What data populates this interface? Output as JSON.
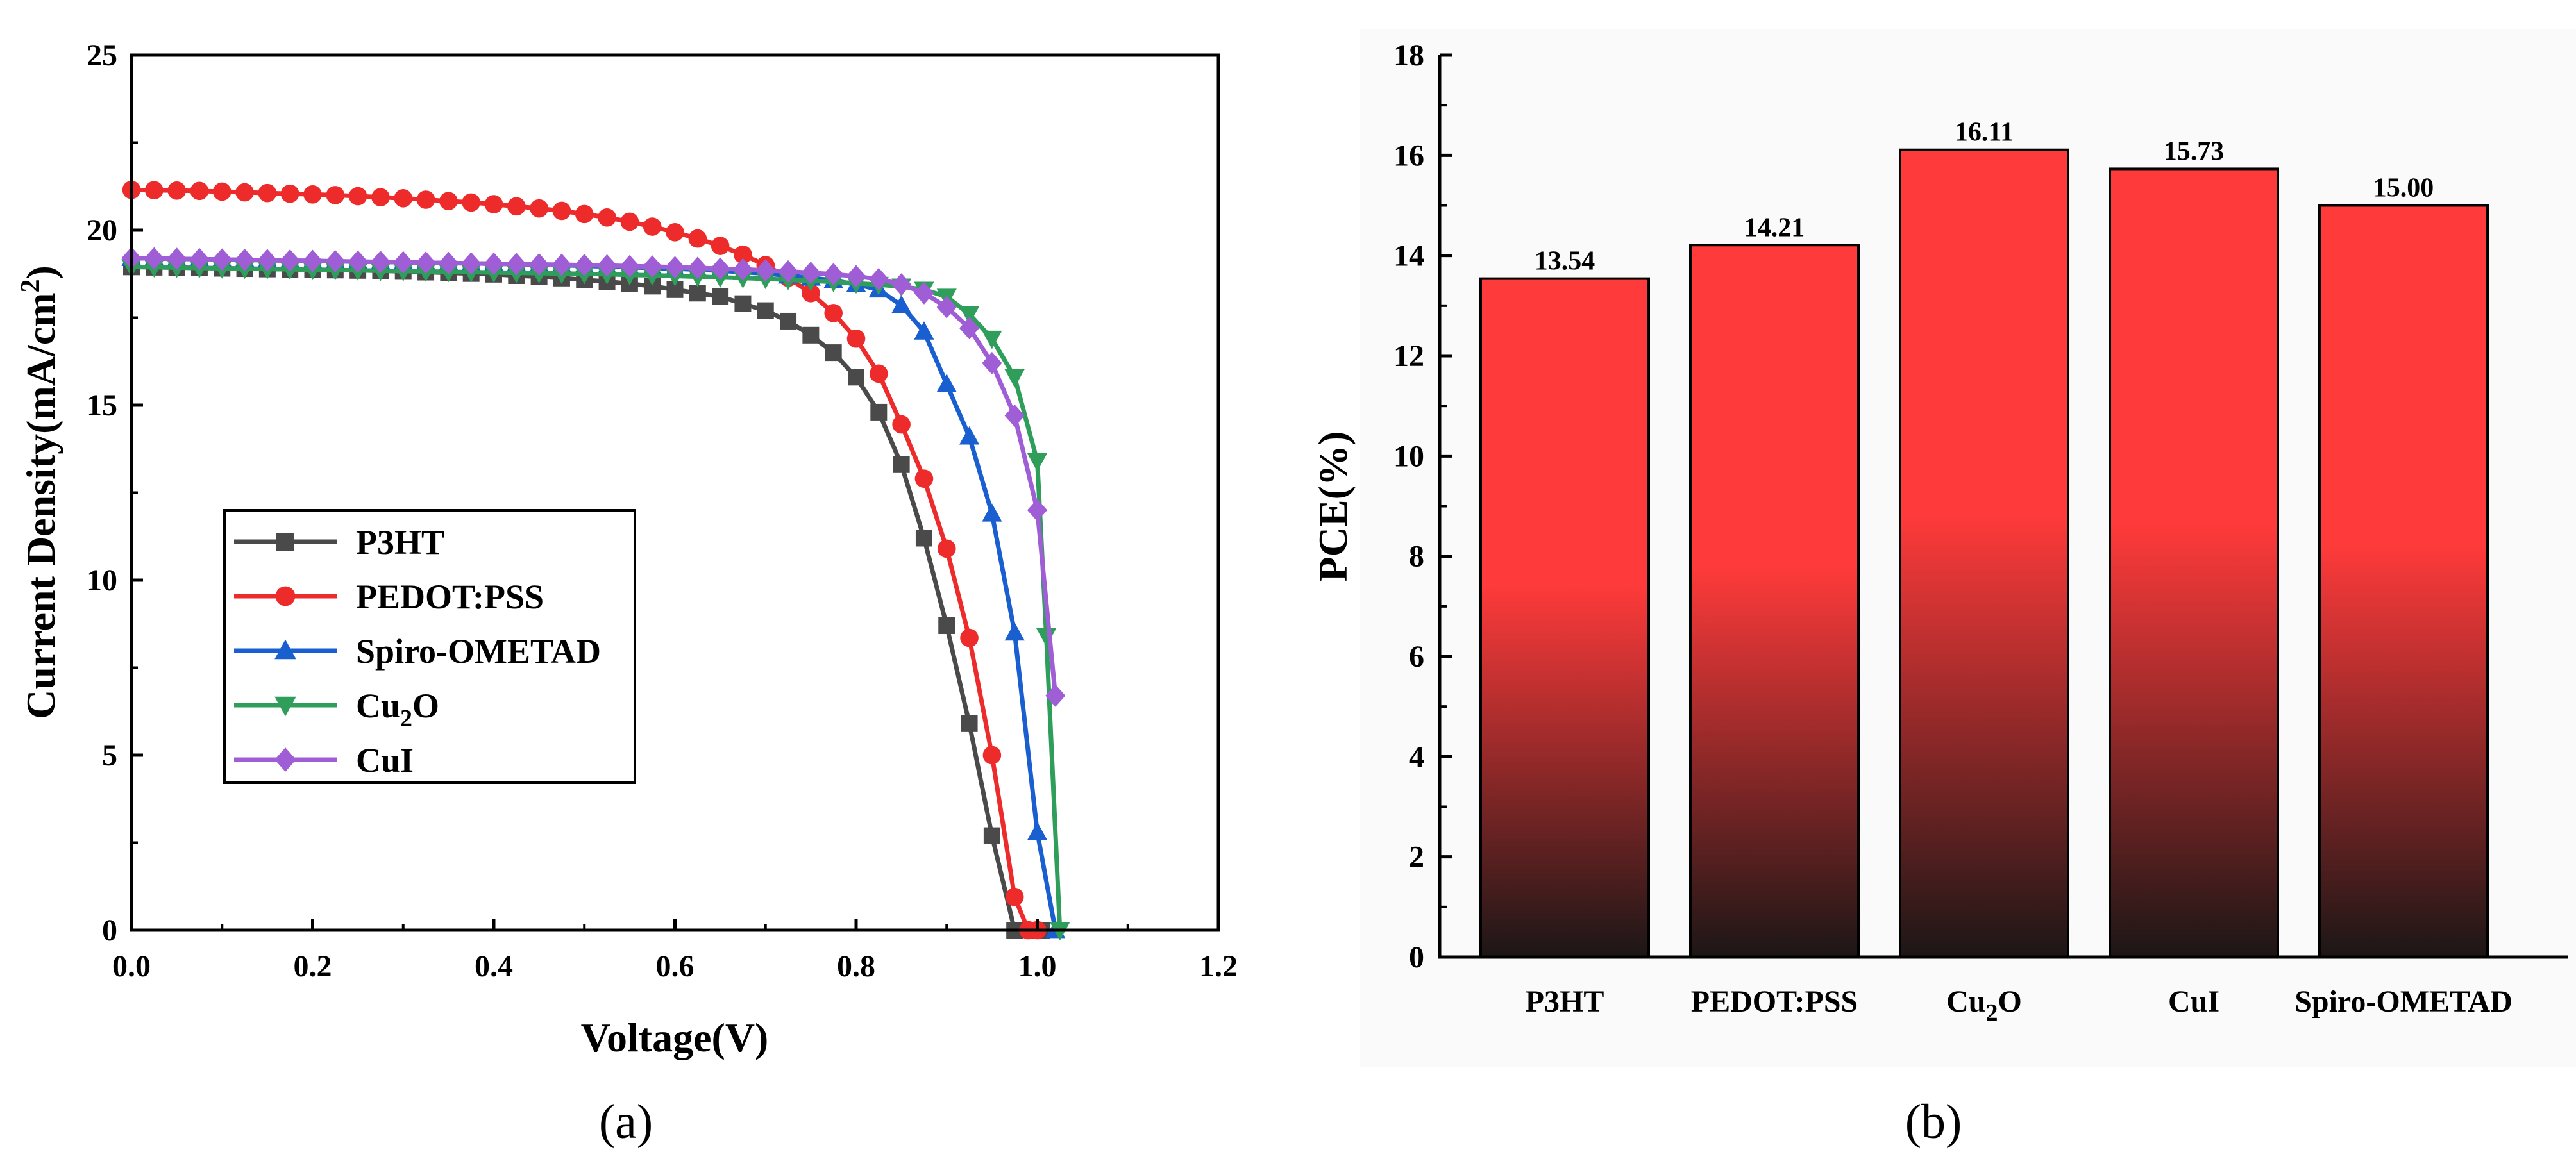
{
  "chart_data": [
    {
      "type": "line",
      "panel_label": "(a)",
      "xlabel": "Voltage(V)",
      "ylabel": "Current Density(mA/cm",
      "ylabel_sup": "2",
      "ylabel_suffix": ")",
      "xlim": [
        0.0,
        1.2
      ],
      "ylim": [
        0,
        25
      ],
      "xticks": [
        "0.0",
        "0.2",
        "0.4",
        "0.6",
        "0.8",
        "1.0",
        "1.2"
      ],
      "yticks": [
        "0",
        "5",
        "10",
        "15",
        "20",
        "25"
      ],
      "legend_position": "lower-left",
      "series": [
        {
          "name": "P3HT",
          "label_main": "P3HT",
          "label_sub": "",
          "label_suffix": "",
          "color": "#4a4a4a",
          "marker": "square",
          "x": [
            0,
            0.025,
            0.05,
            0.075,
            0.1,
            0.125,
            0.15,
            0.175,
            0.2,
            0.225,
            0.25,
            0.275,
            0.3,
            0.325,
            0.35,
            0.375,
            0.4,
            0.425,
            0.45,
            0.475,
            0.5,
            0.525,
            0.55,
            0.575,
            0.6,
            0.625,
            0.65,
            0.675,
            0.7,
            0.725,
            0.75,
            0.775,
            0.8,
            0.825,
            0.85,
            0.875,
            0.9,
            0.925,
            0.95,
            0.975,
            1.0,
            1.005
          ],
          "y": [
            18.95,
            18.94,
            18.93,
            18.92,
            18.91,
            18.9,
            18.89,
            18.88,
            18.87,
            18.86,
            18.85,
            18.84,
            18.82,
            18.8,
            18.78,
            18.76,
            18.74,
            18.7,
            18.67,
            18.63,
            18.58,
            18.53,
            18.47,
            18.4,
            18.3,
            18.2,
            18.1,
            17.9,
            17.7,
            17.4,
            17.0,
            16.5,
            15.8,
            14.8,
            13.3,
            11.2,
            8.7,
            5.9,
            2.7,
            0.0,
            0.0,
            0.0
          ]
        },
        {
          "name": "PEDOT:PSS",
          "label_main": "PEDOT:PSS",
          "label_sub": "",
          "label_suffix": "",
          "color": "#ee2b2b",
          "marker": "circle",
          "x": [
            0,
            0.025,
            0.05,
            0.075,
            0.1,
            0.125,
            0.15,
            0.175,
            0.2,
            0.225,
            0.25,
            0.275,
            0.3,
            0.325,
            0.35,
            0.375,
            0.4,
            0.425,
            0.45,
            0.475,
            0.5,
            0.525,
            0.55,
            0.575,
            0.6,
            0.625,
            0.65,
            0.675,
            0.7,
            0.725,
            0.75,
            0.775,
            0.8,
            0.825,
            0.85,
            0.875,
            0.9,
            0.925,
            0.95,
            0.975,
            0.99,
            1.0
          ],
          "y": [
            21.15,
            21.14,
            21.13,
            21.12,
            21.1,
            21.08,
            21.06,
            21.04,
            21.02,
            21.0,
            20.97,
            20.94,
            20.91,
            20.87,
            20.83,
            20.79,
            20.74,
            20.68,
            20.62,
            20.55,
            20.46,
            20.36,
            20.24,
            20.1,
            19.94,
            19.76,
            19.55,
            19.3,
            19.0,
            18.64,
            18.2,
            17.63,
            16.9,
            15.9,
            14.45,
            12.9,
            10.9,
            8.35,
            5.0,
            0.95,
            0.0,
            0.0
          ]
        },
        {
          "name": "Spiro-OMETAD",
          "label_main": "Spiro-OMETAD",
          "label_sub": "",
          "label_suffix": "",
          "color": "#1a5fd0",
          "marker": "triangle-up",
          "x": [
            0,
            0.025,
            0.05,
            0.075,
            0.1,
            0.125,
            0.15,
            0.175,
            0.2,
            0.225,
            0.25,
            0.275,
            0.3,
            0.325,
            0.35,
            0.375,
            0.4,
            0.425,
            0.45,
            0.475,
            0.5,
            0.525,
            0.55,
            0.575,
            0.6,
            0.625,
            0.65,
            0.675,
            0.7,
            0.725,
            0.75,
            0.775,
            0.8,
            0.825,
            0.85,
            0.875,
            0.9,
            0.925,
            0.95,
            0.975,
            1.0,
            1.02
          ],
          "y": [
            19.2,
            19.19,
            19.18,
            19.17,
            19.16,
            19.15,
            19.14,
            19.13,
            19.12,
            19.11,
            19.1,
            19.09,
            19.08,
            19.07,
            19.06,
            19.05,
            19.04,
            19.03,
            19.01,
            19.0,
            18.98,
            18.96,
            18.94,
            18.92,
            18.9,
            18.87,
            18.84,
            18.8,
            18.76,
            18.7,
            18.64,
            18.56,
            18.45,
            18.3,
            17.85,
            17.1,
            15.6,
            14.1,
            11.9,
            8.5,
            2.8,
            0.0
          ]
        },
        {
          "name": "Cu2O",
          "label_main": "Cu",
          "label_sub": "2",
          "label_suffix": "O",
          "color": "#2e9e5a",
          "marker": "triangle-down",
          "x": [
            0,
            0.025,
            0.05,
            0.075,
            0.1,
            0.125,
            0.15,
            0.175,
            0.2,
            0.225,
            0.25,
            0.275,
            0.3,
            0.325,
            0.35,
            0.375,
            0.4,
            0.425,
            0.45,
            0.475,
            0.5,
            0.525,
            0.55,
            0.575,
            0.6,
            0.625,
            0.65,
            0.675,
            0.7,
            0.725,
            0.75,
            0.775,
            0.8,
            0.825,
            0.85,
            0.875,
            0.9,
            0.925,
            0.95,
            0.975,
            1.0,
            1.01,
            1.025
          ],
          "y": [
            18.95,
            18.94,
            18.93,
            18.92,
            18.91,
            18.9,
            18.89,
            18.88,
            18.87,
            18.86,
            18.85,
            18.84,
            18.83,
            18.82,
            18.81,
            18.8,
            18.79,
            18.78,
            18.77,
            18.76,
            18.75,
            18.74,
            18.72,
            18.71,
            18.69,
            18.67,
            18.65,
            18.63,
            18.61,
            18.58,
            18.55,
            18.52,
            18.48,
            18.44,
            18.39,
            18.3,
            18.1,
            17.6,
            16.9,
            15.8,
            13.4,
            8.4,
            0.0
          ]
        },
        {
          "name": "CuI",
          "label_main": "CuI",
          "label_sub": "",
          "label_suffix": "",
          "color": "#a05ed6",
          "marker": "diamond",
          "x": [
            0,
            0.025,
            0.05,
            0.075,
            0.1,
            0.125,
            0.15,
            0.175,
            0.2,
            0.225,
            0.25,
            0.275,
            0.3,
            0.325,
            0.35,
            0.375,
            0.4,
            0.425,
            0.45,
            0.475,
            0.5,
            0.525,
            0.55,
            0.575,
            0.6,
            0.625,
            0.65,
            0.675,
            0.7,
            0.725,
            0.75,
            0.775,
            0.8,
            0.825,
            0.85,
            0.875,
            0.9,
            0.925,
            0.95,
            0.975,
            1.0,
            1.02
          ],
          "y": [
            19.2,
            19.19,
            19.18,
            19.17,
            19.16,
            19.15,
            19.14,
            19.13,
            19.12,
            19.11,
            19.1,
            19.09,
            19.08,
            19.07,
            19.06,
            19.05,
            19.04,
            19.03,
            19.02,
            19.01,
            19.0,
            18.99,
            18.97,
            18.96,
            18.94,
            18.92,
            18.9,
            18.88,
            18.85,
            18.82,
            18.78,
            18.74,
            18.68,
            18.6,
            18.45,
            18.2,
            17.8,
            17.2,
            16.2,
            14.7,
            12.0,
            6.7
          ]
        }
      ]
    },
    {
      "type": "bar",
      "panel_label": "(b)",
      "xlabel": "",
      "ylabel": "PCE(%)",
      "ylim": [
        0,
        18
      ],
      "yticks": [
        "0",
        "2",
        "4",
        "6",
        "8",
        "10",
        "12",
        "14",
        "16",
        "18"
      ],
      "categories": [
        {
          "name": "P3HT",
          "label_main": "P3HT",
          "label_sub": "",
          "label_suffix": ""
        },
        {
          "name": "PEDOT:PSS",
          "label_main": "PEDOT:PSS",
          "label_sub": "",
          "label_suffix": ""
        },
        {
          "name": "Cu2O",
          "label_main": "Cu",
          "label_sub": "2",
          "label_suffix": "O"
        },
        {
          "name": "CuI",
          "label_main": "CuI",
          "label_sub": "",
          "label_suffix": ""
        },
        {
          "name": "Spiro-OMETAD",
          "label_main": "Spiro-OMETAD",
          "label_sub": "",
          "label_suffix": ""
        }
      ],
      "values": [
        13.54,
        14.21,
        16.11,
        15.73,
        15.0
      ],
      "value_labels": [
        "13.54",
        "14.21",
        "16.11",
        "15.73",
        "15.00"
      ],
      "bar_color_top": "#ff3a3a",
      "bar_color_bottom": "#1c1616"
    }
  ]
}
